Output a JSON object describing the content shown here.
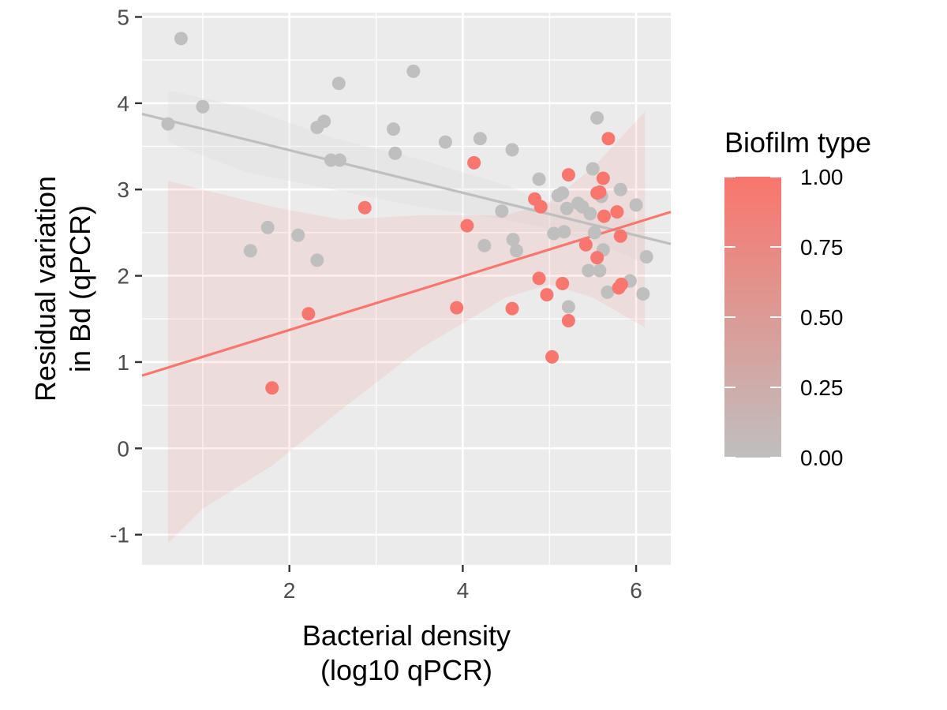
{
  "chart_data": {
    "type": "scatter",
    "xlabel": [
      "Bacterial density",
      "(log10 qPCR)"
    ],
    "ylabel": [
      "Residual variation",
      "in Bd (qPCR)"
    ],
    "xlim": [
      0.3,
      6.4
    ],
    "ylim": [
      -1.35,
      5.05
    ],
    "x_ticks": [
      2,
      4,
      6
    ],
    "y_ticks": [
      -1,
      0,
      1,
      2,
      3,
      4,
      5
    ],
    "grid": true,
    "legend": {
      "title": "Biofilm type",
      "placement": "right",
      "type": "colorbar",
      "ticks": [
        1.0,
        0.75,
        0.5,
        0.25,
        0.0
      ],
      "tick_labels": [
        "1.00",
        "0.75",
        "0.50",
        "0.25",
        "0.00"
      ],
      "low_color": "#bfbfbf",
      "high_color": "#f8766d"
    },
    "colors": {
      "panel": "#ebebeb",
      "grid": "#ffffff",
      "low": "#bfbfbf",
      "high": "#f8766d"
    },
    "fits": [
      {
        "group": 0,
        "slope": -0.247,
        "intercept": 3.95,
        "ribbon": [
          [
            0.6,
            3.55,
            4.15
          ],
          [
            1.5,
            3.2,
            3.95
          ],
          [
            2.5,
            3.0,
            3.6
          ],
          [
            3.5,
            2.8,
            3.35
          ],
          [
            4.5,
            2.65,
            3.05
          ],
          [
            5.0,
            2.55,
            2.85
          ],
          [
            5.5,
            2.4,
            2.7
          ],
          [
            6.1,
            2.15,
            2.65
          ]
        ]
      },
      {
        "group": 1,
        "slope": 0.311,
        "intercept": 0.75,
        "ribbon": [
          [
            0.6,
            -1.1,
            3.1
          ],
          [
            1.0,
            -0.7,
            3.0
          ],
          [
            1.8,
            -0.2,
            2.8
          ],
          [
            2.6,
            0.45,
            2.65
          ],
          [
            3.5,
            1.15,
            2.7
          ],
          [
            4.5,
            1.75,
            2.7
          ],
          [
            5.0,
            1.9,
            2.85
          ],
          [
            5.5,
            1.75,
            3.25
          ],
          [
            6.1,
            1.4,
            3.9
          ]
        ]
      }
    ],
    "points": [
      {
        "x": 0.75,
        "y": 4.75,
        "group": 0
      },
      {
        "x": 0.6,
        "y": 3.76,
        "group": 0
      },
      {
        "x": 1.0,
        "y": 3.96,
        "group": 0
      },
      {
        "x": 1.55,
        "y": 2.29,
        "group": 0
      },
      {
        "x": 1.75,
        "y": 2.56,
        "group": 0
      },
      {
        "x": 2.1,
        "y": 2.47,
        "group": 0
      },
      {
        "x": 2.32,
        "y": 2.18,
        "group": 0
      },
      {
        "x": 2.32,
        "y": 3.72,
        "group": 0
      },
      {
        "x": 2.4,
        "y": 3.79,
        "group": 0
      },
      {
        "x": 2.48,
        "y": 3.34,
        "group": 0
      },
      {
        "x": 2.58,
        "y": 3.34,
        "group": 0
      },
      {
        "x": 2.57,
        "y": 4.23,
        "group": 0
      },
      {
        "x": 3.2,
        "y": 3.7,
        "group": 0
      },
      {
        "x": 3.22,
        "y": 3.42,
        "group": 0
      },
      {
        "x": 3.43,
        "y": 4.37,
        "group": 0
      },
      {
        "x": 3.8,
        "y": 3.55,
        "group": 0
      },
      {
        "x": 4.2,
        "y": 3.59,
        "group": 0
      },
      {
        "x": 4.25,
        "y": 2.35,
        "group": 0
      },
      {
        "x": 4.45,
        "y": 2.75,
        "group": 0
      },
      {
        "x": 4.57,
        "y": 3.46,
        "group": 0
      },
      {
        "x": 4.58,
        "y": 2.42,
        "group": 0
      },
      {
        "x": 4.62,
        "y": 2.29,
        "group": 0
      },
      {
        "x": 4.88,
        "y": 3.12,
        "group": 0
      },
      {
        "x": 5.05,
        "y": 2.49,
        "group": 0
      },
      {
        "x": 5.1,
        "y": 2.93,
        "group": 0
      },
      {
        "x": 5.15,
        "y": 2.96,
        "group": 0
      },
      {
        "x": 5.17,
        "y": 2.51,
        "group": 0
      },
      {
        "x": 5.2,
        "y": 2.78,
        "group": 0
      },
      {
        "x": 5.22,
        "y": 1.64,
        "group": 0
      },
      {
        "x": 5.33,
        "y": 2.84,
        "group": 0
      },
      {
        "x": 5.38,
        "y": 2.8,
        "group": 0
      },
      {
        "x": 5.45,
        "y": 2.06,
        "group": 0
      },
      {
        "x": 5.47,
        "y": 2.72,
        "group": 0
      },
      {
        "x": 5.5,
        "y": 3.24,
        "group": 0
      },
      {
        "x": 5.52,
        "y": 2.5,
        "group": 0
      },
      {
        "x": 5.55,
        "y": 3.83,
        "group": 0
      },
      {
        "x": 5.58,
        "y": 2.06,
        "group": 0
      },
      {
        "x": 5.6,
        "y": 2.92,
        "group": 0
      },
      {
        "x": 5.62,
        "y": 2.3,
        "group": 0
      },
      {
        "x": 5.67,
        "y": 1.81,
        "group": 0
      },
      {
        "x": 5.82,
        "y": 3.0,
        "group": 0
      },
      {
        "x": 5.93,
        "y": 1.94,
        "group": 0
      },
      {
        "x": 6.0,
        "y": 2.82,
        "group": 0
      },
      {
        "x": 6.08,
        "y": 1.79,
        "group": 0
      },
      {
        "x": 6.12,
        "y": 2.22,
        "group": 0
      },
      {
        "x": 1.8,
        "y": 0.7,
        "group": 1
      },
      {
        "x": 2.22,
        "y": 1.56,
        "group": 1
      },
      {
        "x": 2.87,
        "y": 2.79,
        "group": 1
      },
      {
        "x": 3.93,
        "y": 1.63,
        "group": 1
      },
      {
        "x": 4.05,
        "y": 2.58,
        "group": 1
      },
      {
        "x": 4.13,
        "y": 3.31,
        "group": 1
      },
      {
        "x": 4.57,
        "y": 1.62,
        "group": 1
      },
      {
        "x": 4.83,
        "y": 2.89,
        "group": 1
      },
      {
        "x": 4.88,
        "y": 1.97,
        "group": 1
      },
      {
        "x": 4.9,
        "y": 2.8,
        "group": 1
      },
      {
        "x": 4.97,
        "y": 1.78,
        "group": 1
      },
      {
        "x": 5.03,
        "y": 1.06,
        "group": 1
      },
      {
        "x": 5.15,
        "y": 1.91,
        "group": 1
      },
      {
        "x": 5.22,
        "y": 3.17,
        "group": 1
      },
      {
        "x": 5.22,
        "y": 1.48,
        "group": 1
      },
      {
        "x": 5.42,
        "y": 2.36,
        "group": 1
      },
      {
        "x": 5.55,
        "y": 2.21,
        "group": 1
      },
      {
        "x": 5.55,
        "y": 2.96,
        "group": 1
      },
      {
        "x": 5.58,
        "y": 2.97,
        "group": 1
      },
      {
        "x": 5.62,
        "y": 3.13,
        "group": 1
      },
      {
        "x": 5.63,
        "y": 2.69,
        "group": 1
      },
      {
        "x": 5.68,
        "y": 3.59,
        "group": 1
      },
      {
        "x": 5.78,
        "y": 2.74,
        "group": 1
      },
      {
        "x": 5.8,
        "y": 1.86,
        "group": 1
      },
      {
        "x": 5.82,
        "y": 2.46,
        "group": 1
      },
      {
        "x": 5.83,
        "y": 1.9,
        "group": 1
      }
    ]
  }
}
